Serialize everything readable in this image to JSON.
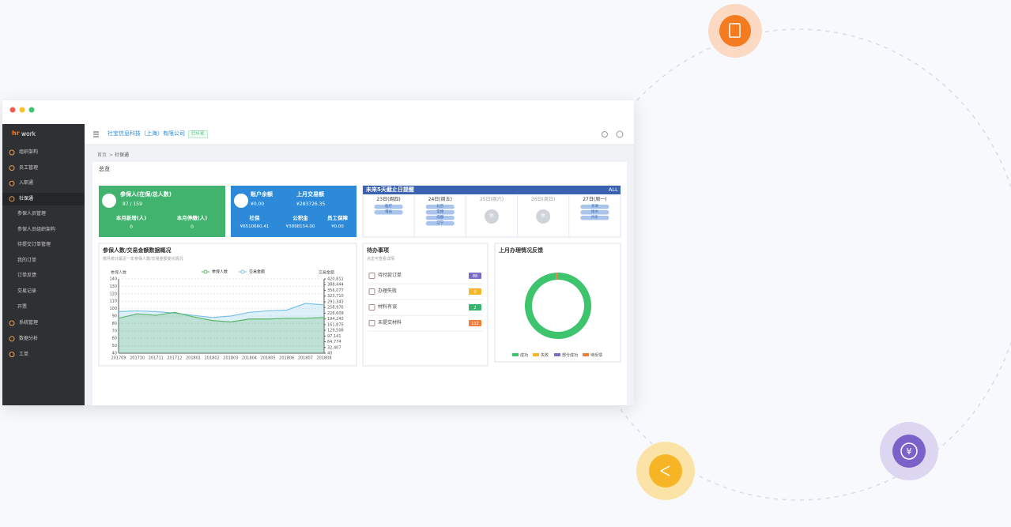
{
  "sidebar": {
    "logo": [
      "hr",
      "work"
    ],
    "menu": [
      "组织架构",
      "员工管理",
      "入职通",
      "社保通"
    ],
    "submenu": [
      "参保人员管理",
      "参保人员组织架构",
      "待提交订单管理",
      "我的订单",
      "订单反馈",
      "交易记录",
      "开票"
    ],
    "menu_bottom": [
      "系统管理",
      "数据分析",
      "工单"
    ]
  },
  "header": {
    "company": "社宝信息科技（上海）有限公司",
    "badge": "已认证"
  },
  "breadcrumb": [
    "首页",
    ">",
    "社保通"
  ],
  "overview_title": "总览",
  "insured_card": {
    "title": "参保人(在保/总人数)",
    "count": "87 / 159",
    "labels": [
      "本月新增(人)",
      "本月停缴(人)"
    ],
    "values": [
      "0",
      "0"
    ]
  },
  "account_card": {
    "balance_label": "账户余额",
    "balance": "¥0.00",
    "last_month_label": "上月交易额",
    "last_month": "¥283726.35",
    "labels": [
      "社保",
      "公积金",
      "员工保障"
    ],
    "values": [
      "¥6510660.41",
      "¥3898154.00",
      "¥0.00"
    ]
  },
  "deadline_card": {
    "title": "未来5天截止日提醒",
    "all": "ALL",
    "days": [
      {
        "date": "23日(周四)",
        "tags": [
          "医疗",
          "增员"
        ]
      },
      {
        "date": "24日(周五)",
        "tags": [
          "北京",
          "常德",
          "成都",
          "辽宁"
        ]
      },
      {
        "date": "25日(周六)",
        "rest": "休"
      },
      {
        "date": "26日(周日)",
        "rest": "休"
      },
      {
        "date": "27日(周一)",
        "tags": [
          "天津",
          "徐州",
          "丹东"
        ]
      }
    ]
  },
  "chart_data": [
    {
      "type": "line",
      "title": "参保人数/交易金额数据概况",
      "subtitle": "按月统计最近一年参保人数/交易金额变化情况",
      "y_label": "参保人数",
      "y2_label": "交易金额",
      "categories": [
        "201709",
        "201710",
        "201711",
        "201712",
        "201801",
        "201802",
        "201803",
        "201804",
        "201805",
        "201806",
        "201807",
        "201808"
      ],
      "series": [
        {
          "name": "参保人数",
          "color": "#5bb56a",
          "values": [
            87,
            93,
            91,
            95,
            89,
            84,
            82,
            86,
            86,
            87,
            87,
            88
          ]
        },
        {
          "name": "交易金额",
          "color": "#7cc3e6",
          "axis": "y2",
          "values": [
            235600,
            239900,
            235600,
            227300,
            214600,
            202000,
            210400,
            231500,
            239900,
            244100,
            282000,
            273500
          ]
        }
      ],
      "ylim": [
        40,
        140
      ],
      "yticks": [
        40,
        50,
        60,
        70,
        80,
        90,
        100,
        110,
        120,
        130,
        140
      ],
      "y2lim": [
        40,
        420811
      ],
      "y2ticks": [
        40,
        {
          "value": 32407,
          "label": "32,407"
        },
        {
          "value": 64774,
          "label": "64,774"
        },
        {
          "value": 97141,
          "label": "97,141"
        },
        {
          "value": 129508,
          "label": "129,508"
        },
        {
          "value": 161875,
          "label": "161,875"
        },
        {
          "value": 194242,
          "label": "194,242"
        },
        {
          "value": 226609,
          "label": "226,609"
        },
        {
          "value": 258976,
          "label": "258,976"
        },
        {
          "value": 291343,
          "label": "291,343"
        },
        {
          "value": 323710,
          "label": "323,710"
        },
        {
          "value": 356077,
          "label": "356,077"
        },
        {
          "value": 388444,
          "label": "388,444"
        },
        {
          "value": 420811,
          "label": "420,811"
        }
      ],
      "grid": true
    },
    {
      "type": "pie",
      "title": "上月办理情况反馈",
      "categories": [
        "成功",
        "失败",
        "部分成功",
        "待反馈"
      ],
      "values": [
        99,
        0,
        0,
        1
      ],
      "colors": [
        "#3ec46d",
        "#f7b52c",
        "#7b6cc4",
        "#f07d3a"
      ]
    }
  ],
  "todo": {
    "title": "待办事项",
    "subtitle": "点击可查看详情",
    "items": [
      {
        "label": "待付款订单",
        "count": 88,
        "color": "#7b6cc4"
      },
      {
        "label": "办理失败",
        "count": 0,
        "color": "#f7b52c"
      },
      {
        "label": "材料有误",
        "count": 2,
        "color": "#3db46d"
      },
      {
        "label": "未提交材料",
        "count": 132,
        "color": "#f07d3a"
      }
    ]
  }
}
